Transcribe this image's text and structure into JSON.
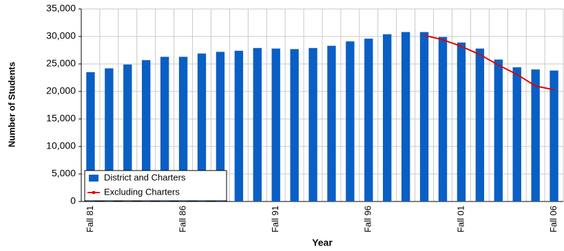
{
  "chart_data": {
    "type": "bar",
    "x_label": "Year",
    "y_label": "Number of Students",
    "categories": [
      "Fall 81",
      null,
      null,
      null,
      null,
      "Fall 86",
      null,
      null,
      null,
      null,
      "Fall 91",
      null,
      null,
      null,
      null,
      "Fall 96",
      null,
      null,
      null,
      null,
      "Fall 01",
      null,
      null,
      null,
      null,
      "Fall 06"
    ],
    "series": [
      {
        "name": "District and Charters",
        "type": "bar",
        "color": "#0a5fc4",
        "values": [
          23500,
          24200,
          24900,
          25700,
          26300,
          26300,
          26900,
          27200,
          27400,
          27900,
          27800,
          27700,
          27900,
          28300,
          29100,
          29600,
          30400,
          30800,
          30800,
          29900,
          28900,
          27800,
          25800,
          24400,
          24000,
          23800
        ]
      },
      {
        "name": "Excluding Charters",
        "type": "line",
        "color": "#e00000",
        "values": [
          null,
          null,
          null,
          null,
          null,
          null,
          null,
          null,
          null,
          null,
          null,
          null,
          null,
          null,
          null,
          null,
          null,
          null,
          30200,
          29400,
          28200,
          26700,
          24800,
          23100,
          21000,
          20300
        ]
      }
    ],
    "ylim": [
      0,
      35000
    ],
    "yticks": [
      0,
      {
        "value": 5000,
        "label": "5,000"
      },
      {
        "value": 10000,
        "label": "10,000"
      },
      {
        "value": 15000,
        "label": "15,000"
      },
      {
        "value": 20000,
        "label": "20,000"
      },
      {
        "value": 25000,
        "label": "25,000"
      },
      {
        "value": 30000,
        "label": "30,000"
      },
      {
        "value": 35000,
        "label": "35,000"
      }
    ],
    "grid": true,
    "legend": "lower left"
  }
}
